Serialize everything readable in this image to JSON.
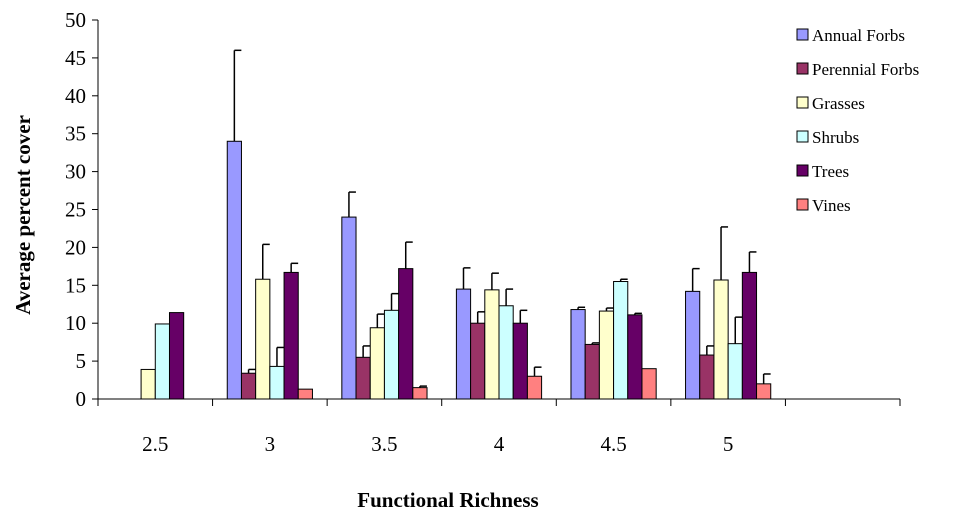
{
  "chart_data": {
    "type": "bar",
    "title": "",
    "xlabel": "Functional Richness",
    "ylabel": "Average percent cover",
    "ylim": [
      0,
      50
    ],
    "yticks": [
      0,
      5,
      10,
      15,
      20,
      25,
      30,
      35,
      40,
      45,
      50
    ],
    "grid": false,
    "legend_position": "top-right",
    "categories": [
      "2.5",
      "3",
      "3.5",
      "4",
      "4.5",
      "5"
    ],
    "empty_trailing_categories": 1,
    "series": [
      {
        "name": "Annual Forbs",
        "color": "#9999ff",
        "values": [
          0,
          34,
          24,
          14.5,
          11.8,
          14.2
        ],
        "errors": [
          0,
          12,
          3.3,
          2.8,
          0.3,
          3
        ]
      },
      {
        "name": "Perennial Forbs",
        "color": "#993366",
        "values": [
          0,
          3.4,
          5.5,
          10,
          7.2,
          5.8
        ],
        "errors": [
          0,
          0.5,
          1.5,
          1.5,
          0.2,
          1.2
        ]
      },
      {
        "name": "Grasses",
        "color": "#ffffcc",
        "values": [
          3.9,
          15.8,
          9.4,
          14.4,
          11.6,
          15.7
        ],
        "errors": [
          0,
          4.6,
          1.8,
          2.2,
          0.4,
          7
        ]
      },
      {
        "name": "Shrubs",
        "color": "#ccffff",
        "values": [
          9.9,
          4.3,
          11.7,
          12.3,
          15.5,
          7.3
        ],
        "errors": [
          0,
          2.5,
          2.2,
          2.2,
          0.3,
          3.5
        ]
      },
      {
        "name": "Trees",
        "color": "#660066",
        "values": [
          11.4,
          16.7,
          17.2,
          10,
          11.1,
          16.7
        ],
        "errors": [
          0,
          1.2,
          3.5,
          1.7,
          0.2,
          2.7
        ]
      },
      {
        "name": "Vines",
        "color": "#ff8080",
        "values": [
          0,
          1.3,
          1.5,
          3,
          4,
          2
        ],
        "errors": [
          0,
          0,
          0.2,
          1.2,
          0,
          1.3
        ]
      }
    ]
  }
}
